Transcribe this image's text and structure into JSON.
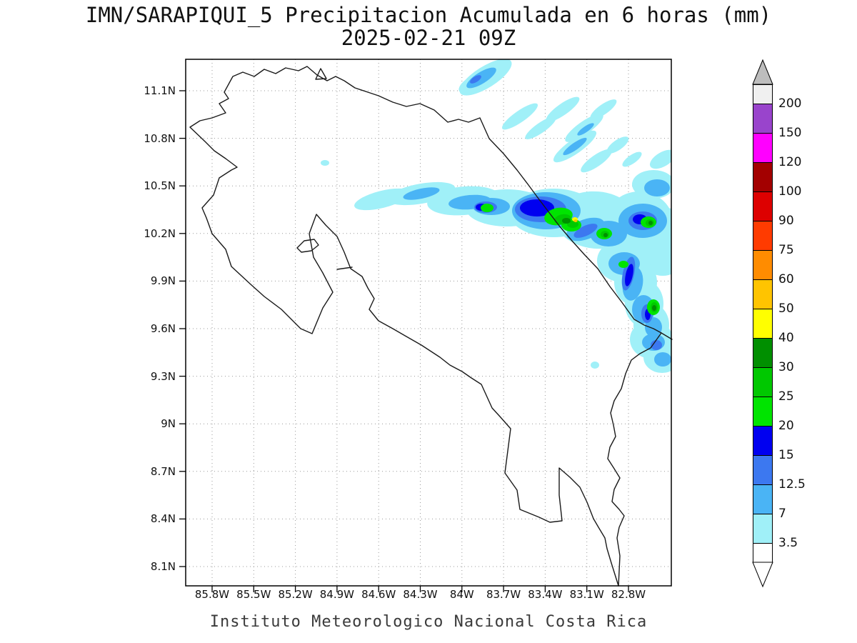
{
  "title": {
    "line1": "IMN/SARAPIQUI_5 Precipitacion Acumulada en 6 horas (mm)",
    "line2": "2025-02-21 09Z"
  },
  "footer": {
    "caption": "Instituto Meteorologico Nacional Costa Rica"
  },
  "map": {
    "y_ticks": [
      "11.1N",
      "10.8N",
      "10.5N",
      "10.2N",
      "9.9N",
      "9.6N",
      "9.3N",
      "9N",
      "8.7N",
      "8.4N",
      "8.1N"
    ],
    "x_ticks": [
      "85.8W",
      "85.5W",
      "85.2W",
      "84.9W",
      "84.6W",
      "84.3W",
      "84W",
      "83.7W",
      "83.4W",
      "83.1W",
      "82.8W"
    ]
  },
  "colorbar": {
    "levels": [
      "200",
      "150",
      "120",
      "100",
      "90",
      "75",
      "60",
      "50",
      "40",
      "30",
      "25",
      "20",
      "15",
      "12.5",
      "7",
      "3.5"
    ],
    "segment_colors": [
      "#f0f0f0",
      "#9944cc",
      "#ff00ff",
      "#a30000",
      "#dd0000",
      "#ff3b00",
      "#ff8c00",
      "#ffc400",
      "#ffff00",
      "#008f00",
      "#00c800",
      "#00e400",
      "#0000f0",
      "#3c78f0",
      "#4ab4f5",
      "#a0f0f8",
      "#ffffff"
    ],
    "arrow_top_color": "#bdbdbd",
    "arrow_bottom_color": "#ffffff"
  },
  "chart_data": {
    "type": "heatmap",
    "title": "IMN/SARAPIQUI_5 Precipitacion Acumulada en 6 horas (mm)",
    "valid_time": "2025-02-21 09Z",
    "units": "mm",
    "region": "Costa Rica",
    "lat_ticks_deg_n": [
      11.1,
      10.8,
      10.5,
      10.2,
      9.9,
      9.6,
      9.3,
      9.0,
      8.7,
      8.4,
      8.1
    ],
    "lon_ticks_deg_w": [
      85.8,
      85.5,
      85.2,
      84.9,
      84.6,
      84.3,
      84.0,
      83.7,
      83.4,
      83.1,
      82.8
    ],
    "lat_range_deg_n": [
      8.0,
      11.3
    ],
    "lon_range_deg_w": [
      86.0,
      82.5
    ],
    "contour_levels_mm": [
      3.5,
      7,
      12.5,
      15,
      20,
      25,
      30,
      40,
      50,
      60,
      75,
      90,
      100,
      120,
      150,
      200
    ],
    "level_colors_low_to_high": [
      "#ffffff",
      "#a0f0f8",
      "#4ab4f5",
      "#3c78f0",
      "#0000f0",
      "#00e400",
      "#00c800",
      "#008f00",
      "#ffff00",
      "#ffc400",
      "#ff8c00",
      "#ff3b00",
      "#dd0000",
      "#a30000",
      "#ff00ff",
      "#9944cc",
      "#f0f0f0"
    ],
    "palette": {
      "p1": "#a0f0f8",
      "p2": "#4ab4f5",
      "p3": "#3c78f0",
      "p4": "#0000f0",
      "p5": "#00e400",
      "p6": "#00c800",
      "p7": "#008f00",
      "p8": "#ffff00",
      "p9": "#ffc400"
    },
    "grid": "dotted, at every labeled tick",
    "legend_position": "right vertical colorbar with over/under arrows",
    "precipitation_summary": "Shading confined to the Caribbean/northeastern side of Costa Rica: a broad 3.5-15 mm band near 10.2-10.5N stretching from about 84.7W eastward past 82.6W; embedded 15-30 mm cores near 83.5-83.0W with small 30-50 mm maxima and an isolated 50-60 mm point near 83.2W 10.25N; diagonal light streaks (3.5-12.5 mm) to the northeast around 10.7-11.2N; further 7-30 mm cells running down the Caribbean coast to about 9.4N near 82.8W."
  }
}
